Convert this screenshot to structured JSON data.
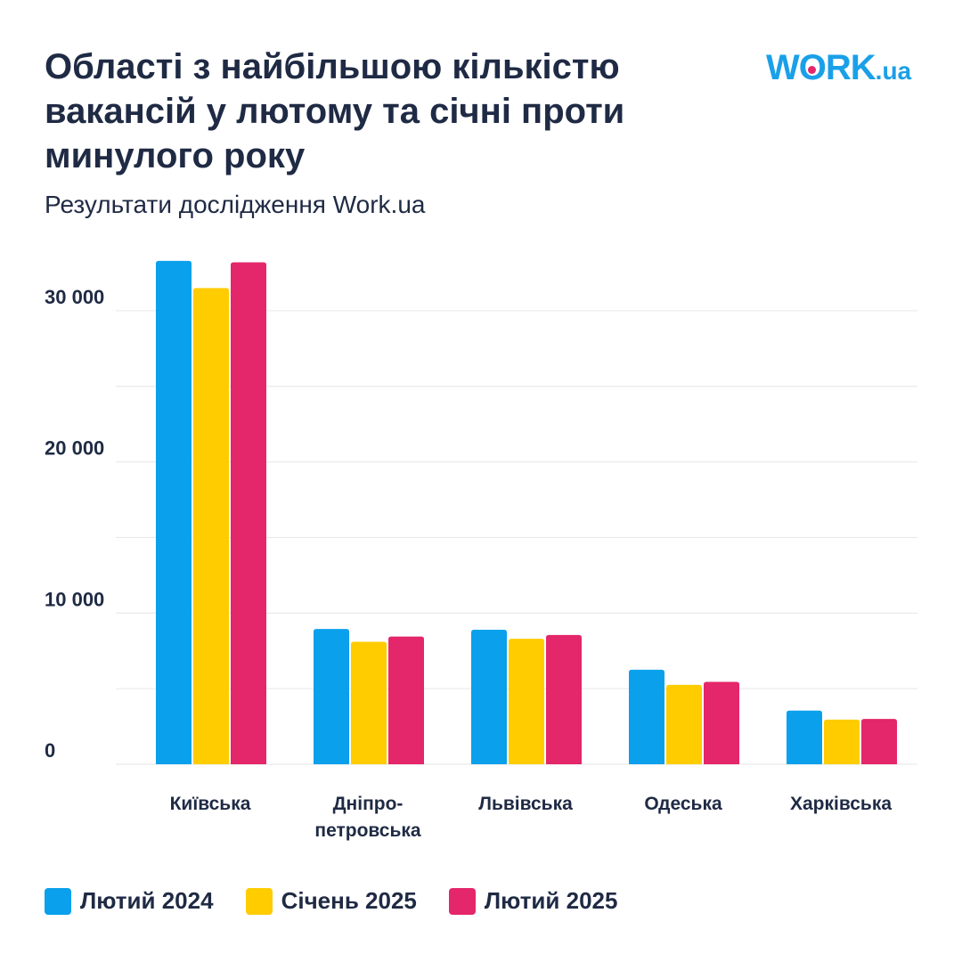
{
  "header": {
    "title": "Області з найбільшою кількістю вакансій у лютому та січні проти минулого року",
    "subtitle": "Результати дослідження Work.ua"
  },
  "logo": {
    "main_w": "W",
    "main_o": "O",
    "main_rest": "RK",
    "suffix": ".ua"
  },
  "colors": {
    "series1": "#0aa0ec",
    "series2": "#ffcc00",
    "series3": "#e4266a",
    "grid": "#e6e6e6",
    "text": "#1f2a44"
  },
  "chart_data": {
    "type": "bar",
    "title": "Області з найбільшою кількістю вакансій у лютому та січні проти минулого року",
    "subtitle": "Результати дослідження Work.ua",
    "categories": [
      [
        "Київська"
      ],
      [
        "Дніпро-",
        "петровська"
      ],
      [
        "Львівська"
      ],
      [
        "Одеська"
      ],
      [
        "Харківська"
      ]
    ],
    "series": [
      {
        "name": "Лютий 2024",
        "values": [
          33300,
          8950,
          8900,
          6250,
          3550
        ]
      },
      {
        "name": "Січень 2025",
        "values": [
          31500,
          8100,
          8300,
          5250,
          2950
        ]
      },
      {
        "name": "Лютий 2025",
        "values": [
          33200,
          8450,
          8550,
          5450,
          3000
        ]
      }
    ],
    "yticks": [
      0,
      10000,
      20000,
      30000
    ],
    "ytick_labels": [
      "0",
      "10 000",
      "20 000",
      "30 000"
    ],
    "ylim": [
      0,
      35000
    ],
    "grid": true,
    "xlabel": "",
    "ylabel": "",
    "legend_position": "bottom-left"
  }
}
